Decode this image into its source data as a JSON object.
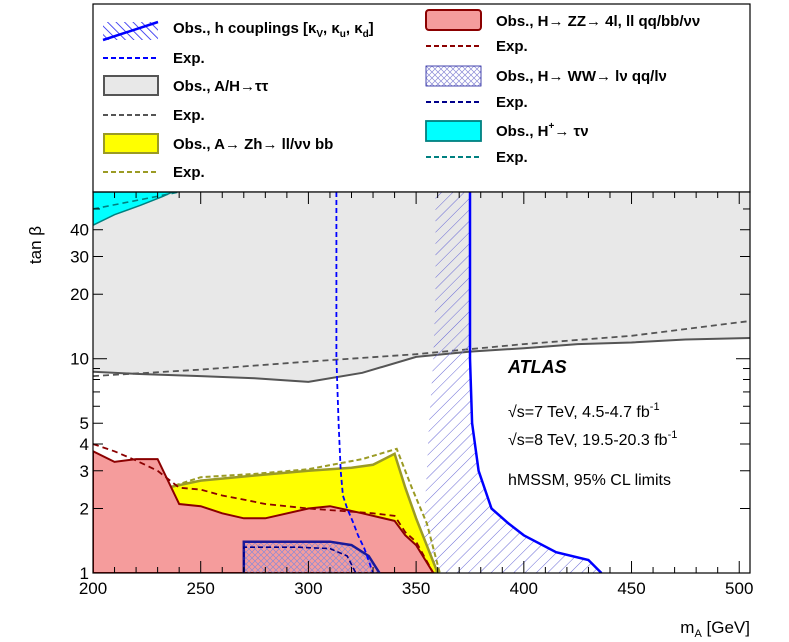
{
  "chart_data": {
    "type": "area",
    "title": "",
    "xlabel": "m",
    "xlabel_sub": "A",
    "xlabel_unit": " [GeV]",
    "ylabel": "tan β",
    "xlim": [
      200,
      505
    ],
    "ylim": [
      1,
      60
    ],
    "yscale": "log",
    "grid": false,
    "legend_position": "top",
    "x_ticks": [
      200,
      250,
      300,
      350,
      400,
      450,
      500
    ],
    "x_tick_labels": [
      "200",
      "250",
      "300",
      "350",
      "400",
      "450",
      "500"
    ],
    "y_ticks": [
      1,
      2,
      3,
      4,
      5,
      10,
      20,
      30,
      40
    ],
    "y_tick_labels": [
      "1",
      "2",
      "3",
      "4",
      "5",
      "10",
      "20",
      "30",
      "40"
    ],
    "colors": {
      "tautau_fill": "#e8e8e8",
      "tautau_line": "#555555",
      "zh_fill": "#ffff00",
      "zh_line": "#9b9b24",
      "zz_fill": "#f59c9c",
      "zz_line": "#8b0000",
      "ww_hatch": "#5a5acc",
      "hplus_fill": "#00ffff",
      "hplus_line": "#008080",
      "hcoup_line": "#0000ff",
      "hcoup_exp": "#0000ff",
      "ww_exp": "#00008b"
    },
    "series": [
      {
        "key": "tautau",
        "name": "Obs., A/H→ττ",
        "exp_name": "Exp.",
        "obs_boundary": [
          [
            200,
            8.7
          ],
          [
            220,
            8.5
          ],
          [
            250,
            8.3
          ],
          [
            275,
            8.1
          ],
          [
            300,
            7.8
          ],
          [
            325,
            8.6
          ],
          [
            350,
            10.2
          ],
          [
            375,
            10.8
          ],
          [
            400,
            11.2
          ],
          [
            425,
            11.7
          ],
          [
            450,
            11.9
          ],
          [
            475,
            12.3
          ],
          [
            505,
            12.5
          ]
        ],
        "exp": [
          [
            200,
            8.3
          ],
          [
            250,
            8.9
          ],
          [
            300,
            9.7
          ],
          [
            350,
            10.5
          ],
          [
            400,
            11.7
          ],
          [
            450,
            12.8
          ],
          [
            505,
            15.0
          ]
        ]
      },
      {
        "key": "zh",
        "name": "Obs., A→ Zh→ ll/νν bb",
        "exp_name": "Exp.",
        "obs": [
          [
            220,
            1.0
          ],
          [
            220,
            1.75
          ],
          [
            230,
            2.45
          ],
          [
            250,
            2.7
          ],
          [
            275,
            2.85
          ],
          [
            300,
            3.0
          ],
          [
            320,
            3.1
          ],
          [
            330,
            3.2
          ],
          [
            340,
            3.6
          ],
          [
            345,
            2.5
          ],
          [
            350,
            1.8
          ],
          [
            360,
            1.0
          ]
        ],
        "exp": [
          [
            221,
            1.0
          ],
          [
            221,
            1.65
          ],
          [
            232,
            2.45
          ],
          [
            250,
            2.8
          ],
          [
            275,
            2.9
          ],
          [
            300,
            3.05
          ],
          [
            325,
            3.4
          ],
          [
            341,
            3.8
          ],
          [
            348,
            2.5
          ],
          [
            355,
            1.7
          ],
          [
            361,
            1.0
          ]
        ]
      },
      {
        "key": "zz",
        "name": "Obs., H→ ZZ→ 4l, ll qq/bb/νν",
        "exp_name": "Exp.",
        "obs": [
          [
            200,
            3.7
          ],
          [
            210,
            3.3
          ],
          [
            220,
            3.4
          ],
          [
            230,
            3.4
          ],
          [
            240,
            2.1
          ],
          [
            250,
            2.05
          ],
          [
            260,
            1.9
          ],
          [
            270,
            1.8
          ],
          [
            280,
            1.8
          ],
          [
            300,
            2.0
          ],
          [
            310,
            2.05
          ],
          [
            325,
            1.9
          ],
          [
            340,
            1.75
          ],
          [
            345,
            1.5
          ],
          [
            350,
            1.35
          ],
          [
            358,
            1.0
          ]
        ],
        "exp": [
          [
            200,
            4.0
          ],
          [
            210,
            3.7
          ],
          [
            220,
            3.35
          ],
          [
            230,
            3.0
          ],
          [
            240,
            2.5
          ],
          [
            250,
            2.45
          ],
          [
            260,
            2.3
          ],
          [
            270,
            2.2
          ],
          [
            280,
            2.1
          ],
          [
            300,
            2.0
          ],
          [
            315,
            1.95
          ],
          [
            330,
            1.9
          ],
          [
            340,
            1.85
          ],
          [
            345,
            1.55
          ],
          [
            350,
            1.4
          ],
          [
            358,
            1.0
          ]
        ]
      },
      {
        "key": "ww",
        "name": "Obs., H→ WW→ lν qq/lν",
        "exp_name": "Exp.",
        "obs": [
          [
            353,
            1.0
          ],
          [
            354,
            2.0
          ],
          [
            355,
            3.0
          ],
          [
            356,
            5.0
          ],
          [
            357,
            7.0
          ],
          [
            358,
            10.0
          ],
          [
            359,
            20.0
          ],
          [
            359,
            60.0
          ],
          [
            375,
            60.0
          ],
          [
            375,
            20.0
          ],
          [
            375,
            10.0
          ],
          [
            376,
            5.0
          ],
          [
            379,
            3.0
          ],
          [
            385,
            2.0
          ],
          [
            393,
            1.7
          ],
          [
            400,
            1.5
          ],
          [
            415,
            1.25
          ],
          [
            430,
            1.15
          ],
          [
            436,
            1.0
          ]
        ]
      },
      {
        "key": "hplus",
        "name": "Obs., H⁺→ τν",
        "exp_name": "Exp.",
        "obs": [
          [
            200,
            42.0
          ],
          [
            210,
            47.0
          ],
          [
            222,
            52.0
          ],
          [
            232,
            57.0
          ],
          [
            237,
            60.0
          ],
          [
            200,
            60.0
          ]
        ],
        "exp": [
          [
            200,
            50.0
          ],
          [
            225,
            56.0
          ],
          [
            240,
            60.0
          ]
        ]
      },
      {
        "key": "hcoup",
        "name": "Obs., h couplings [κ_V, κ_u, κ_d]",
        "exp_name": "Exp.",
        "obs_boundary": [
          [
            375,
            60.0
          ],
          [
            375,
            20.0
          ],
          [
            375,
            10.0
          ],
          [
            376,
            5.0
          ],
          [
            379,
            3.0
          ],
          [
            385,
            2.0
          ],
          [
            393,
            1.7
          ],
          [
            400,
            1.5
          ],
          [
            415,
            1.25
          ],
          [
            430,
            1.15
          ],
          [
            436,
            1.0
          ]
        ],
        "exp": [
          [
            313,
            60.0
          ],
          [
            313,
            40.0
          ],
          [
            313,
            20.0
          ],
          [
            313,
            10.0
          ],
          [
            314,
            5.0
          ],
          [
            315,
            3.0
          ],
          [
            316,
            2.3
          ],
          [
            318,
            2.0
          ],
          [
            321,
            1.7
          ],
          [
            323,
            1.5
          ],
          [
            326,
            1.3
          ],
          [
            330,
            1.0
          ]
        ]
      },
      {
        "key": "small",
        "name": "",
        "obs": [
          [
            270,
            1.0
          ],
          [
            270,
            1.4
          ],
          [
            310,
            1.4
          ],
          [
            320,
            1.35
          ],
          [
            328,
            1.2
          ],
          [
            333,
            1.0
          ]
        ],
        "exp": [
          [
            270,
            1.0
          ],
          [
            270,
            1.32
          ],
          [
            295,
            1.32
          ],
          [
            310,
            1.3
          ],
          [
            318,
            1.2
          ],
          [
            322,
            1.0
          ]
        ]
      }
    ],
    "legend": [
      {
        "label_main": "Obs., h couplings [κ",
        "sub_v": "V",
        "sep1": ", κ",
        "sub_u": "u",
        "sep2": ", κ",
        "sub_d": "d",
        "end": "]"
      },
      {
        "label": "Exp."
      },
      {
        "label": "Obs., A/H→ττ"
      },
      {
        "label": "Exp."
      },
      {
        "label": "Obs., A→ Zh→ ll/νν bb"
      },
      {
        "label": "Exp."
      },
      {
        "label": "Obs., H→ ZZ→ 4l, ll qq/bb/νν"
      },
      {
        "label": "Exp."
      },
      {
        "label": "Obs., H→ WW→ lν qq/lν"
      },
      {
        "label": "Exp."
      },
      {
        "label_pre": "Obs., H",
        "sup": "+",
        "label_post": "→  τν"
      },
      {
        "label": "Exp."
      }
    ],
    "annotations": {
      "atlas": "ATLAS",
      "line1_pre": "√s=7 TeV, 4.5-4.7 fb",
      "line1_sup": "-1",
      "line2_pre": "√s=8 TeV, 19.5-20.3 fb",
      "line2_sup": "-1",
      "line3": "hMSSM, 95% CL limits"
    }
  }
}
